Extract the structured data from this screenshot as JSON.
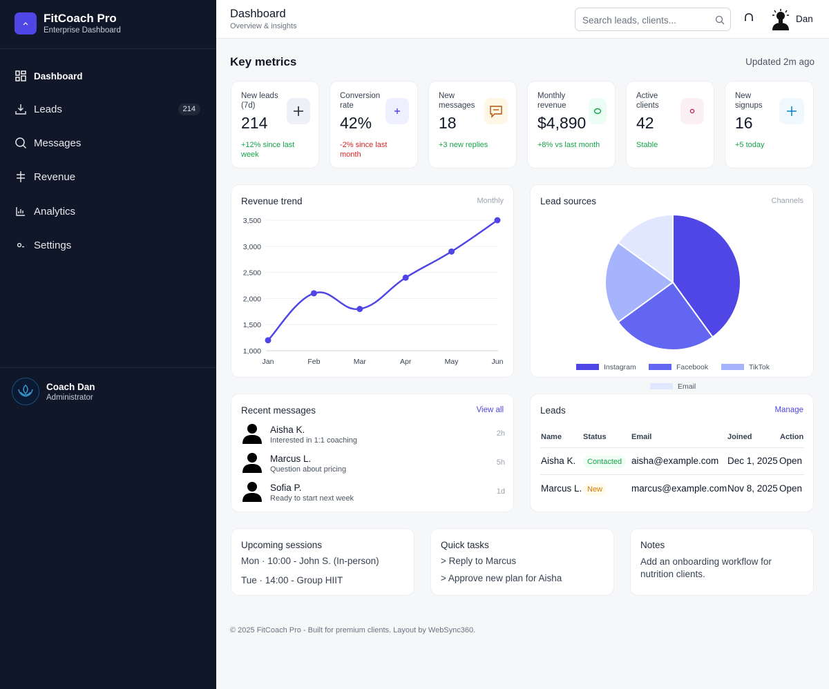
{
  "brand": {
    "title": "FitCoach Pro",
    "subtitle": "Enterprise Dashboard"
  },
  "sidebar": {
    "items": [
      {
        "label": "Dashboard",
        "icon": "grid-icon",
        "active": true
      },
      {
        "label": "Leads",
        "icon": "download-icon",
        "badge": "214"
      },
      {
        "label": "Messages",
        "icon": "search-icon"
      },
      {
        "label": "Revenue",
        "icon": "hash-icon"
      },
      {
        "label": "Analytics",
        "icon": "bar-chart-icon"
      },
      {
        "label": "Settings",
        "icon": "settings-icon"
      }
    ],
    "profile": {
      "name": "Coach Dan",
      "role": "Administrator"
    }
  },
  "header": {
    "title": "Dashboard",
    "subtitle": "Overview & insights",
    "search_placeholder": "Search leads, clients...",
    "user_name": "Dan"
  },
  "main": {
    "section_title": "Key metrics",
    "updated": "Updated 2m ago",
    "metrics": [
      {
        "label": "New leads (7d)",
        "value": "214",
        "delta": "+12% since last week",
        "delta_color": "#16a34a",
        "icon": "plus-icon"
      },
      {
        "label": "Conversion rate",
        "value": "42%",
        "delta": "-2% since last month",
        "delta_color": "#dc2626",
        "icon": "plus-icon"
      },
      {
        "label": "New messages",
        "value": "18",
        "delta": "+3 new replies",
        "delta_color": "#16a34a",
        "icon": "message-icon"
      },
      {
        "label": "Monthly revenue",
        "value": "$4,890",
        "delta": "+8% vs last month",
        "delta_color": "#16a34a",
        "icon": "circle-icon"
      },
      {
        "label": "Active clients",
        "value": "42",
        "delta": "Stable",
        "delta_color": "#16a34a",
        "icon": "dot-icon"
      },
      {
        "label": "New signups",
        "value": "16",
        "delta": "+5 today",
        "delta_color": "#16a34a",
        "icon": "plus-icon"
      }
    ],
    "revenue_card": {
      "title": "Revenue trend",
      "tag": "Monthly"
    },
    "lead_sources_card": {
      "title": "Lead sources",
      "tag": "Channels"
    },
    "messages_card": {
      "title": "Recent messages",
      "link": "View all",
      "items": [
        {
          "name": "Aisha K.",
          "text": "Interested in 1:1 coaching",
          "time": "2h"
        },
        {
          "name": "Marcus L.",
          "text": "Question about pricing",
          "time": "5h"
        },
        {
          "name": "Sofia P.",
          "text": "Ready to start next week",
          "time": "1d"
        }
      ]
    },
    "leads_card": {
      "title": "Leads",
      "link": "Manage",
      "columns": [
        "Name",
        "Status",
        "Email",
        "Joined",
        "Action"
      ],
      "rows": [
        {
          "name": "Aisha K.",
          "status": "Contacted",
          "email": "aisha@example.com",
          "joined": "Dec 1, 2025",
          "action": "Open"
        },
        {
          "name": "Marcus L.",
          "status": "New",
          "email": "marcus@example.com",
          "joined": "Nov 8, 2025",
          "action": "Open"
        }
      ]
    },
    "sessions_card": {
      "title": "Upcoming sessions",
      "items": [
        "Mon · 10:00 - John S. (In-person)",
        "Tue · 14:00 - Group HIIT"
      ]
    },
    "tasks_card": {
      "title": "Quick tasks",
      "items": [
        "> Reply to Marcus",
        "> Approve new plan for Aisha"
      ]
    },
    "notes_card": {
      "title": "Notes",
      "text": "Add an onboarding workflow for nutrition clients."
    },
    "footer": "© 2025 FitCoach Pro - Built for premium clients. Layout by WebSync360."
  },
  "colors": {
    "accent": "#4f46e5",
    "sidebar_bg": "#0f1729",
    "positive": "#16a34a",
    "negative": "#dc2626"
  },
  "chart_data": [
    {
      "type": "line",
      "categories": [
        "Jan",
        "Feb",
        "Mar",
        "Apr",
        "May",
        "Jun"
      ],
      "series": [
        {
          "values": [
            1200,
            2100,
            1800,
            2400,
            2900,
            3500
          ]
        }
      ],
      "yticks": [
        "1,000",
        "1,500",
        "2,000",
        "2,500",
        "3,000",
        "3,500"
      ],
      "ylim": [
        1000,
        3500
      ],
      "grid": true,
      "color": "#4f46e5"
    },
    {
      "type": "pie",
      "labels": [
        "Instagram",
        "Facebook",
        "TikTok",
        "Email"
      ],
      "values": [
        40,
        25,
        20,
        15
      ],
      "colors": [
        "#4f46e5",
        "#6366f1",
        "#a5b4fc",
        "#e0e7ff"
      ],
      "legend": "bottom"
    }
  ]
}
